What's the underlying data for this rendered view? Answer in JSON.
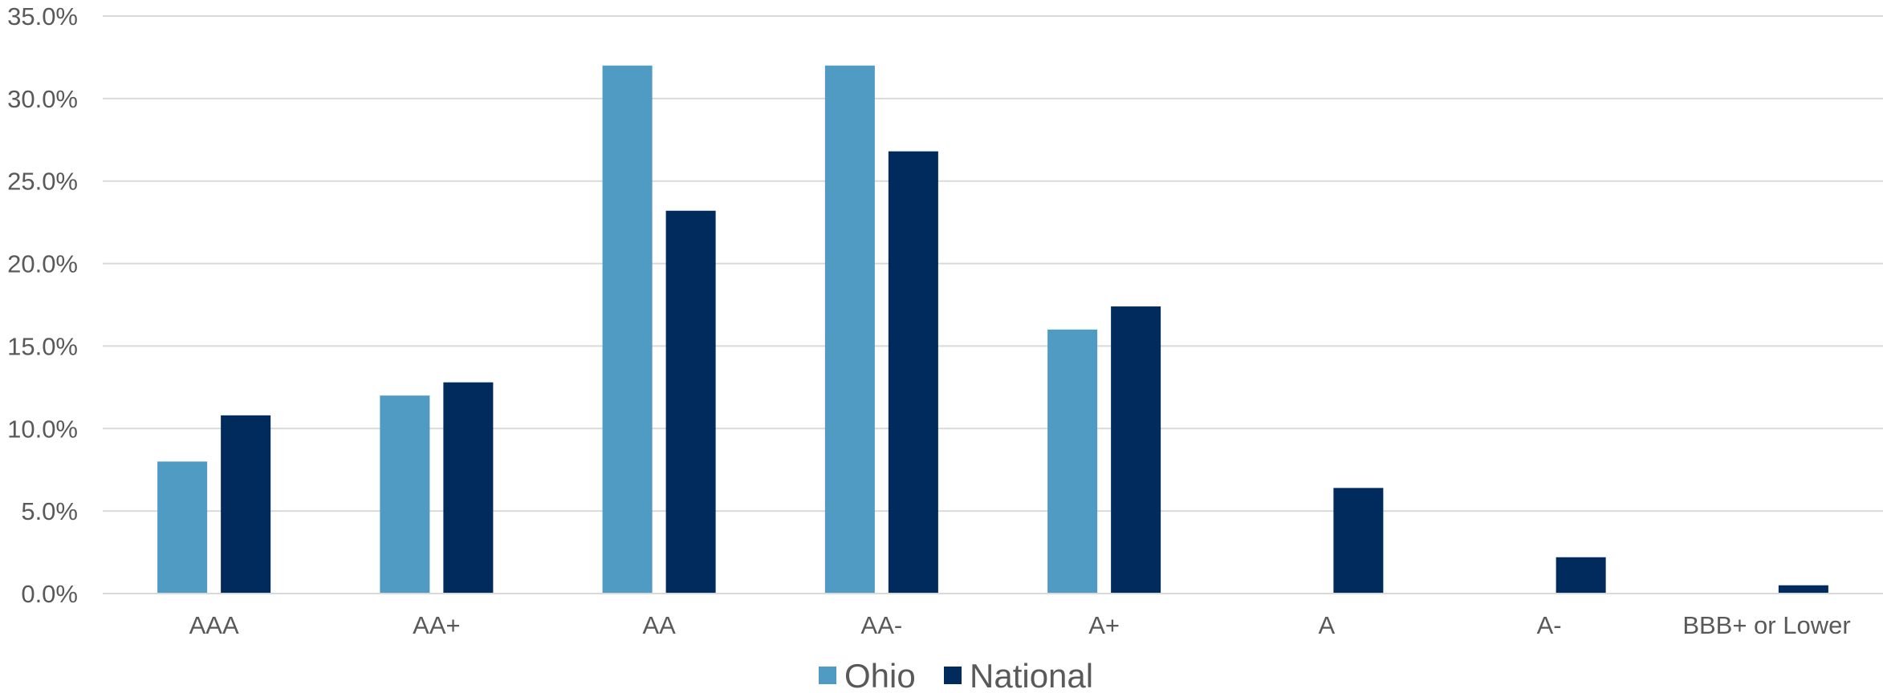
{
  "chart_data": {
    "type": "bar",
    "title": "",
    "xlabel": "",
    "ylabel": "",
    "categories": [
      "AAA",
      "AA+",
      "AA",
      "AA-",
      "A+",
      "A",
      "A-",
      "BBB+ or Lower"
    ],
    "series": [
      {
        "name": "Ohio",
        "color": "#4f9bc4",
        "values": [
          8.0,
          12.0,
          32.0,
          32.0,
          16.0,
          0.0,
          0.0,
          0.0
        ]
      },
      {
        "name": "National",
        "color": "#002b5c",
        "values": [
          10.8,
          12.8,
          23.2,
          26.8,
          17.4,
          6.4,
          2.2,
          0.5
        ]
      }
    ],
    "ylim": [
      0,
      35
    ],
    "yticks": [
      0,
      5,
      10,
      15,
      20,
      25,
      30,
      35
    ],
    "ytick_labels": [
      "0.0%",
      "5.0%",
      "10.0%",
      "15.0%",
      "20.0%",
      "25.0%",
      "30.0%",
      "35.0%"
    ],
    "grid": true,
    "legend_position": "bottom-center"
  }
}
